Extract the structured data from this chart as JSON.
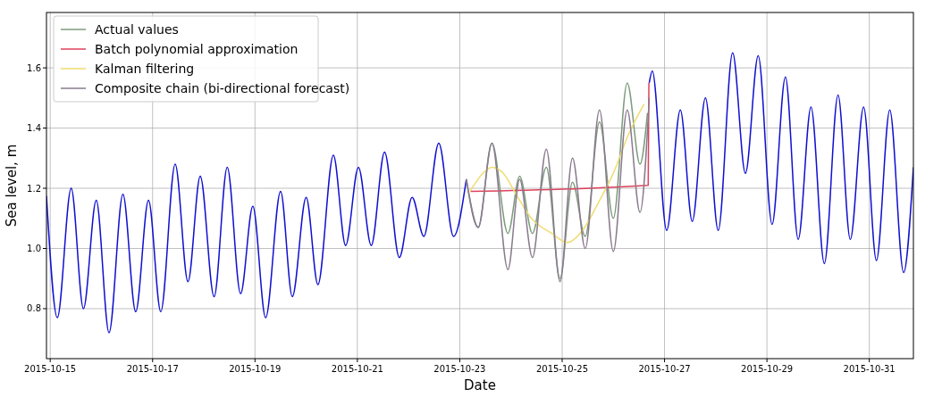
{
  "chart_data": {
    "type": "line",
    "xlabel": "Date",
    "ylabel": "Sea level, m",
    "xlim": [
      "2015-10-14T22:15",
      "2015-10-31T20:40"
    ],
    "xticks": [
      "2015-10-15",
      "2015-10-17",
      "2015-10-19",
      "2015-10-21",
      "2015-10-23",
      "2015-10-25",
      "2015-10-27",
      "2015-10-29",
      "2015-10-31"
    ],
    "ylim": [
      0.634,
      1.784
    ],
    "yticks": [
      0.8,
      {
        "value": 1,
        "label": "1.0"
      },
      1.2,
      1.4,
      1.6
    ],
    "grid": true,
    "legend": "top left",
    "series": [
      {
        "color": "#1010d0",
        "x": [
          "2015-10-14T22:15",
          "2015-10-15T03:20",
          "2015-10-15T09:50",
          "2015-10-15T15:35",
          "2015-10-15T21:35",
          "2015-10-16T03:35",
          "2015-10-16T10:05",
          "2015-10-16T16:05",
          "2015-10-16T22:05",
          "2015-10-17T03:50",
          "2015-10-17T10:35",
          "2015-10-17T16:35",
          "2015-10-17T22:20",
          "2015-10-18T04:50",
          "2015-10-18T11:00",
          "2015-10-18T17:15",
          "2015-10-18T23:00",
          "2015-10-19T05:00",
          "2015-10-19T12:00",
          "2015-10-19T17:30",
          "2015-10-20T00:00",
          "2015-10-20T05:30",
          "2015-10-20T12:45",
          "2015-10-20T18:30",
          "2015-10-21T00:30",
          "2015-10-21T06:30",
          "2015-10-21T12:45",
          "2015-10-21T19:40",
          "2015-10-22T01:40",
          "2015-10-22T07:10",
          "2015-10-22T14:10",
          "2015-10-22T21:05",
          "2015-10-23T03:05",
          "2015-10-25T00:00",
          "2015-10-26T16:50",
          "2015-10-26T18:15",
          "2015-10-27T01:00",
          "2015-10-27T07:25",
          "2015-10-27T13:00",
          "2015-10-27T19:10",
          "2015-10-28T01:10",
          "2015-10-28T07:55",
          "2015-10-28T13:55",
          "2015-10-28T19:55",
          "2015-10-29T02:25",
          "2015-10-29T08:40",
          "2015-10-29T14:40",
          "2015-10-29T20:40",
          "2015-10-30T02:55",
          "2015-10-30T09:20",
          "2015-10-30T15:05",
          "2015-10-30T21:20",
          "2015-10-31T03:20",
          "2015-10-31T09:35",
          "2015-10-31T16:05",
          "2015-10-31T20:40"
        ],
        "values": [
          1.175,
          0.77,
          1.2,
          0.8,
          1.16,
          0.72,
          1.18,
          0.79,
          1.16,
          0.79,
          1.28,
          0.89,
          1.24,
          0.84,
          1.27,
          0.85,
          1.14,
          0.77,
          1.19,
          0.84,
          1.17,
          0.88,
          1.31,
          1.01,
          1.27,
          1.01,
          1.32,
          0.97,
          1.17,
          1.04,
          1.35,
          1.04,
          1.23,
          null,
          1.55,
          1.59,
          1.06,
          1.46,
          1.09,
          1.5,
          1.06,
          1.65,
          1.25,
          1.64,
          1.08,
          1.57,
          1.03,
          1.47,
          0.95,
          1.51,
          1.03,
          1.47,
          0.96,
          1.46,
          0.92,
          1.27
        ]
      },
      {
        "name": "Actual values",
        "color": "#7d9c7d",
        "x": [
          "2015-10-23T03:05",
          "2015-10-23T08:40",
          "2015-10-23T15:05",
          "2015-10-23T22:35",
          "2015-10-24T04:05",
          "2015-10-24T10:05",
          "2015-10-24T16:35",
          "2015-10-24T23:00",
          "2015-10-25T04:50",
          "2015-10-25T10:50",
          "2015-10-25T17:30",
          "2015-10-26T00:00",
          "2015-10-26T06:30",
          "2015-10-26T12:30",
          "2015-10-26T16:00"
        ],
        "values": [
          1.23,
          1.07,
          1.35,
          1.05,
          1.24,
          1.05,
          1.27,
          0.9,
          1.22,
          1.04,
          1.42,
          1.1,
          1.55,
          1.28,
          1.45
        ]
      },
      {
        "name": "Batch polynomial approximation",
        "color": "#e0405a",
        "x": [
          "2015-10-23T05:00",
          "2015-10-26T16:20",
          "2015-10-26T16:40"
        ],
        "values": [
          1.19,
          1.21,
          1.55
        ]
      },
      {
        "name": "Kalman filtering",
        "color": "#f0dc70",
        "x": [
          "2015-10-23T04:50",
          "2015-10-23T10:50",
          "2015-10-23T15:05",
          "2015-10-23T20:25",
          "2015-10-24T02:25",
          "2015-10-24T09:35",
          "2015-10-24T19:10",
          "2015-10-25T02:25",
          "2015-10-25T09:35",
          "2015-10-25T16:50",
          "2015-10-26T00:00",
          "2015-10-26T07:10",
          "2015-10-26T14:25"
        ],
        "values": [
          1.19,
          1.25,
          1.27,
          1.25,
          1.18,
          1.1,
          1.05,
          1.02,
          1.06,
          1.15,
          1.25,
          1.38,
          1.48
        ]
      },
      {
        "name": "Composite chain (bi-directional forecast)",
        "color": "#8a7a8e",
        "x": [
          "2015-10-23T03:05",
          "2015-10-23T08:40",
          "2015-10-23T15:05",
          "2015-10-23T22:35",
          "2015-10-24T04:05",
          "2015-10-24T10:05",
          "2015-10-24T16:35",
          "2015-10-24T23:00",
          "2015-10-25T04:50",
          "2015-10-25T10:50",
          "2015-10-25T17:30",
          "2015-10-26T00:00",
          "2015-10-26T06:30",
          "2015-10-26T12:30",
          "2015-10-26T16:50"
        ],
        "values": [
          1.23,
          1.07,
          1.35,
          0.93,
          1.23,
          0.97,
          1.33,
          0.89,
          1.3,
          1.0,
          1.46,
          0.99,
          1.46,
          1.12,
          1.5
        ]
      }
    ]
  }
}
